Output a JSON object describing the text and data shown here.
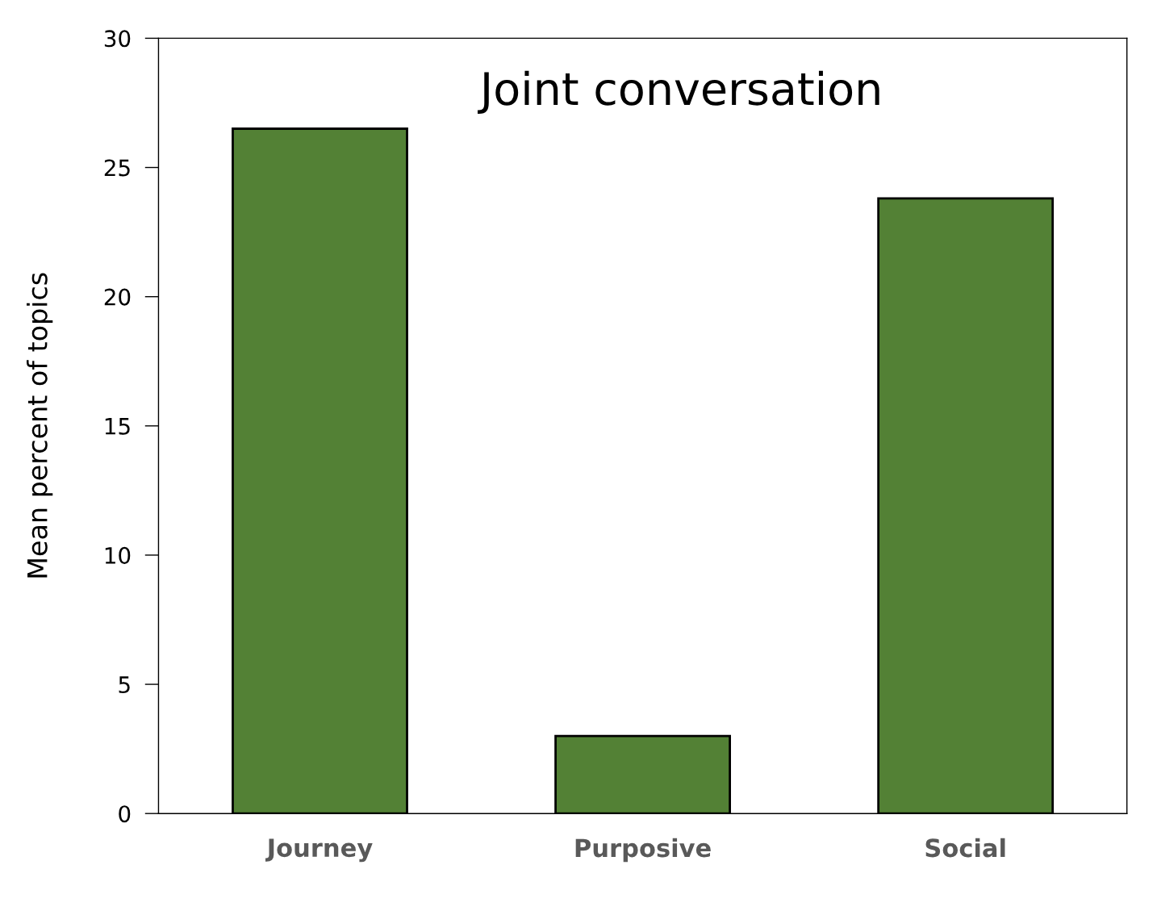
{
  "chart_data": {
    "type": "bar",
    "title": "Joint conversation",
    "ylabel": "Mean percent of topics",
    "categories": [
      "Journey",
      "Purposive",
      "Social"
    ],
    "values": [
      26.5,
      3.0,
      23.8
    ],
    "color": "#538135",
    "ylim": [
      0,
      30
    ],
    "yticks": [
      0,
      5,
      10,
      15,
      20,
      25,
      30
    ],
    "grid": false,
    "legend": false
  }
}
